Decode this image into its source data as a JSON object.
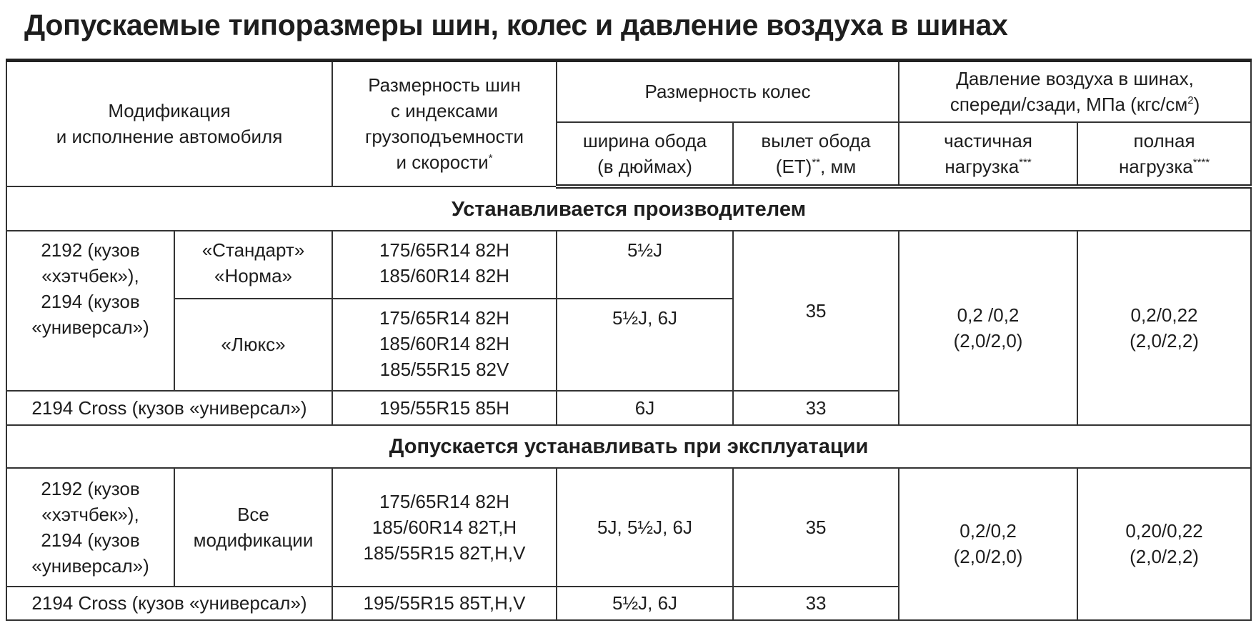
{
  "title": "Допускаемые типоразмеры шин, колес и давление воздуха в шинах",
  "header": {
    "modification": [
      "Модификация",
      "и исполнение автомобиля"
    ],
    "tire": [
      "Размерность шин",
      "с индексами",
      "грузоподъемности",
      "и скорости"
    ],
    "tire_sup": "*",
    "wheel": "Размерность колес",
    "pressure": [
      "Давление воздуха в шинах,",
      "спереди/сзади, МПа (кгс/см"
    ],
    "pressure_sup": "2",
    "pressure_close": ")",
    "rim_width": [
      "ширина обода",
      "(в дюймах)"
    ],
    "rim_offset": [
      "вылет обода",
      "(ЕТ)"
    ],
    "rim_offset_sup": "**",
    "rim_offset_unit": ", мм",
    "partial": [
      "частичная",
      "нагрузка"
    ],
    "partial_sup": "***",
    "full": [
      "полная",
      "нагрузка"
    ],
    "full_sup": "****"
  },
  "sections": [
    {
      "label": "Устанавливается производителем",
      "model": [
        "2192 (кузов",
        "«хэтчбек»),",
        "2194 (кузов",
        "«универсал»)"
      ],
      "rows": [
        {
          "trim": [
            "«Стандарт»",
            "«Норма»"
          ],
          "tires": [
            "175/65R14 82H",
            "185/60R14 82H"
          ],
          "rim_width": "5½J"
        },
        {
          "trim": [
            "«Люкс»"
          ],
          "tires": [
            "175/65R14 82H",
            "185/60R14 82H",
            "185/55R15 82V"
          ],
          "rim_width": "5½J, 6J"
        }
      ],
      "offset": "35",
      "partial": [
        "0,2 /0,2",
        "(2,0/2,0)"
      ],
      "full": [
        "0,2/0,22",
        "(2,0/2,2)"
      ],
      "cross": {
        "model": "2194 Cross (кузов «универсал»)",
        "tire": "195/55R15 85H",
        "rim_width": "6J",
        "offset": "33"
      }
    },
    {
      "label": "Допускается устанавливать при эксплуатации",
      "model": [
        "2192 (кузов",
        "«хэтчбек»),",
        "2194 (кузов",
        "«универсал»)"
      ],
      "trim": [
        "Все",
        "модификации"
      ],
      "tires": [
        "175/65R14 82H",
        "185/60R14 82T,H",
        "185/55R15 82T,H,V"
      ],
      "rim_width": "5J, 5½J, 6J",
      "offset": "35",
      "partial": [
        "0,2/0,2",
        "(2,0/2,0)"
      ],
      "full": [
        "0,20/0,22",
        "(2,0/2,2)"
      ],
      "cross": {
        "model": "2194 Cross (кузов «универсал»)",
        "tire": "195/55R15 85T,H,V",
        "rim_width": "5½J, 6J",
        "offset": "33"
      }
    }
  ]
}
